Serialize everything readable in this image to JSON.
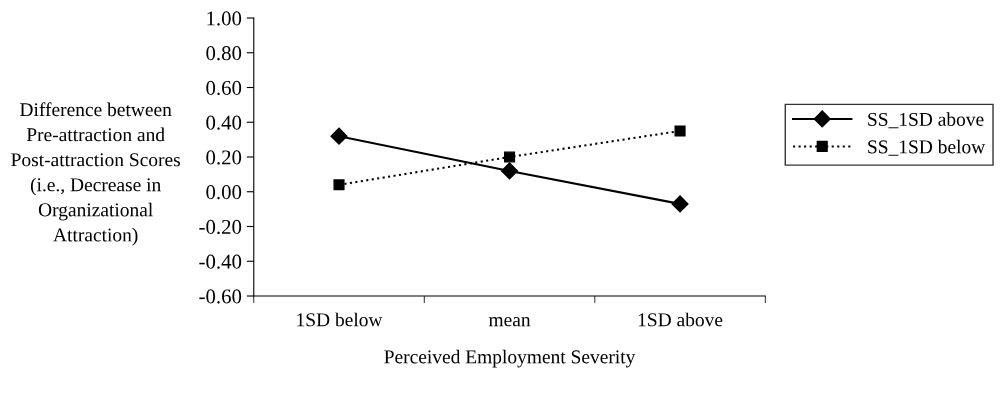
{
  "chart_data": {
    "type": "line",
    "xlabel": "Perceived Employment Severity",
    "ylabel": "Difference between Pre-attraction and Post-attraction Scores (i.e., Decrease in Organizational Attraction)",
    "categories": [
      "1SD below",
      "mean",
      "1SD above"
    ],
    "series": [
      {
        "name": "SS_1SD above",
        "color": "#000000",
        "values": [
          0.32,
          0.12,
          -0.07
        ],
        "marker": "diamond",
        "line_style": "solid"
      },
      {
        "name": "SS_1SD below",
        "color": "#000000",
        "values": [
          0.04,
          0.2,
          0.35
        ],
        "marker": "square",
        "line_style": "dotted"
      }
    ],
    "ylim": [
      -0.6,
      1.0
    ],
    "yticks": [
      {
        "value": 1.0,
        "label": "1.00"
      },
      {
        "value": 0.8,
        "label": "0.80"
      },
      {
        "value": 0.6,
        "label": "0.60"
      },
      {
        "value": 0.4,
        "label": "0.40"
      },
      {
        "value": 0.2,
        "label": "0.20"
      },
      {
        "value": 0.0,
        "label": "0.00"
      },
      {
        "value": -0.2,
        "label": "-0.20"
      },
      {
        "value": -0.4,
        "label": "-0.40"
      },
      {
        "value": -0.6,
        "label": "-0.60"
      }
    ],
    "grid": false,
    "legend": "right"
  }
}
